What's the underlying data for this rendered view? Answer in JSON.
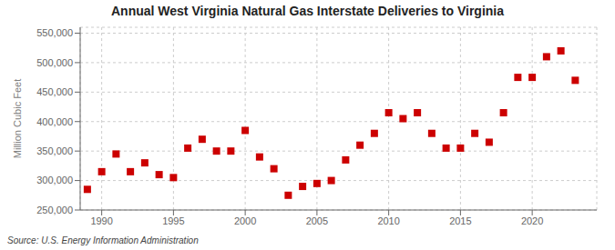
{
  "chart_data": {
    "type": "scatter",
    "title": "Annual West Virginia Natural Gas Interstate Deliveries to Virginia",
    "y_label": "Million Cubic Feet",
    "annotations": [
      "Source: U.S. Energy Information Administration"
    ],
    "x": [
      1989,
      1990,
      1991,
      1992,
      1993,
      1994,
      1995,
      1996,
      1997,
      1998,
      1999,
      2000,
      2001,
      2002,
      2003,
      2004,
      2005,
      2006,
      2007,
      2008,
      2009,
      2010,
      2011,
      2012,
      2013,
      2014,
      2015,
      2016,
      2017,
      2018,
      2019,
      2020,
      2021,
      2022,
      2023
    ],
    "values": [
      285000,
      315000,
      345000,
      315000,
      330000,
      310000,
      305000,
      355000,
      370000,
      350000,
      350000,
      385000,
      340000,
      320000,
      275000,
      290000,
      295000,
      300000,
      335000,
      360000,
      380000,
      415000,
      405000,
      415000,
      380000,
      355000,
      355000,
      380000,
      365000,
      415000,
      475000,
      475000,
      510000,
      520000,
      470000
    ],
    "color": "#cc0000",
    "marker": "square",
    "xlim": [
      1988.5,
      2024.5
    ],
    "xticks": [
      1990,
      1995,
      2000,
      2005,
      2010,
      2015,
      2020
    ],
    "ylim": [
      250000,
      560000
    ],
    "yticks": [
      {
        "value": 250000,
        "label": "250,000"
      },
      {
        "value": 300000,
        "label": "300,000"
      },
      {
        "value": 350000,
        "label": "350,000"
      },
      {
        "value": 400000,
        "label": "400,000"
      },
      {
        "value": 450000,
        "label": "450,000"
      },
      {
        "value": 500000,
        "label": "500,000"
      },
      {
        "value": 550000,
        "label": "550,000"
      }
    ],
    "grid": true
  }
}
